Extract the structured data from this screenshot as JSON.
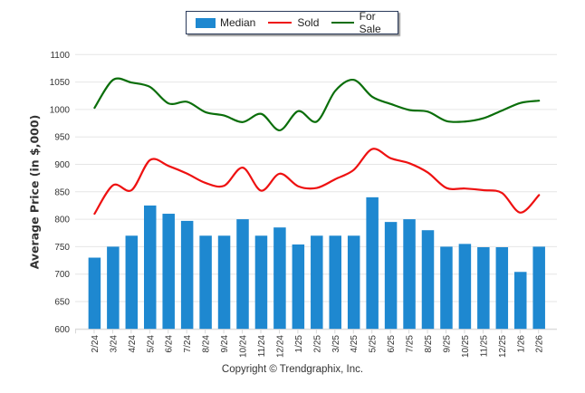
{
  "chart_data": {
    "type": "bar",
    "title": "",
    "xlabel": "",
    "ylabel": "Average Price (in $,000)",
    "ylim": [
      600,
      1100
    ],
    "yticks": [
      600,
      650,
      700,
      750,
      800,
      850,
      900,
      950,
      1000,
      1050,
      1100
    ],
    "grid": true,
    "legend_position": "top-center",
    "categories": [
      "2/24",
      "3/24",
      "4/24",
      "5/24",
      "6/24",
      "7/24",
      "8/24",
      "9/24",
      "10/24",
      "11/24",
      "12/24",
      "1/25",
      "2/25",
      "3/25",
      "4/25",
      "5/25",
      "6/25",
      "7/25",
      "8/25",
      "9/25",
      "10/25",
      "11/25",
      "12/25",
      "1/26",
      "2/26"
    ],
    "series": [
      {
        "name": "Median",
        "type": "bar",
        "color": "#1e88d0",
        "values": [
          730,
          750,
          770,
          825,
          810,
          797,
          770,
          770,
          800,
          770,
          785,
          754,
          770,
          770,
          770,
          840,
          795,
          800,
          780,
          750,
          755,
          749,
          749,
          704,
          750
        ]
      },
      {
        "name": "Sold",
        "type": "line",
        "color": "#ee1111",
        "values": [
          810,
          862,
          853,
          908,
          897,
          883,
          866,
          861,
          894,
          852,
          883,
          860,
          857,
          873,
          890,
          928,
          911,
          902,
          885,
          857,
          856,
          853,
          848,
          812,
          844
        ]
      },
      {
        "name": "For Sale",
        "type": "line",
        "color": "#0a6e0a",
        "values": [
          1003,
          1054,
          1049,
          1041,
          1011,
          1014,
          995,
          989,
          977,
          992,
          962,
          997,
          978,
          1034,
          1054,
          1023,
          1010,
          999,
          996,
          979,
          978,
          984,
          998,
          1012,
          1016
        ]
      }
    ]
  },
  "legend": {
    "items": [
      {
        "label": "Median",
        "color": "#1e88d0"
      },
      {
        "label": "Sold",
        "color": "#ee1111"
      },
      {
        "label": "For Sale",
        "color": "#0a6e0a"
      }
    ]
  },
  "footer": {
    "copyright": "Copyright © Trendgraphix, Inc."
  }
}
